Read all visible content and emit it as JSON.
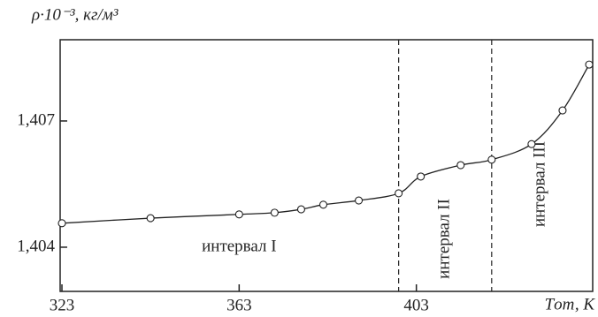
{
  "chart_data": {
    "type": "line",
    "y_label": "ρ·10⁻³, кг/м³",
    "x_label": "Tот, К",
    "x": [
      323,
      343,
      363,
      371,
      377,
      382,
      390,
      399,
      404,
      413,
      420,
      429,
      436,
      442
    ],
    "series": [
      {
        "color": "#222222",
        "values": [
          1.40457,
          1.40469,
          1.40478,
          1.40482,
          1.4049,
          1.40501,
          1.40511,
          1.40528,
          1.40568,
          1.40595,
          1.40608,
          1.40645,
          1.40725,
          1.40834
        ]
      }
    ],
    "xlim": [
      322.6,
      442.8
    ],
    "ylim": [
      1.40295,
      1.40893
    ],
    "xticks": [
      323,
      363,
      403
    ],
    "yticks": [
      {
        "value": 1.404,
        "label": "1,404"
      },
      {
        "value": 1.407,
        "label": "1,407"
      }
    ],
    "boundaries": [
      399,
      420
    ],
    "annotations": [
      {
        "text": "интервал I",
        "x": 363,
        "y": 1.404
      },
      {
        "text": "интервал II",
        "x": 409.5,
        "y": 1.4042
      },
      {
        "text": "интервал III",
        "x": 431,
        "y": 1.4055
      }
    ]
  }
}
